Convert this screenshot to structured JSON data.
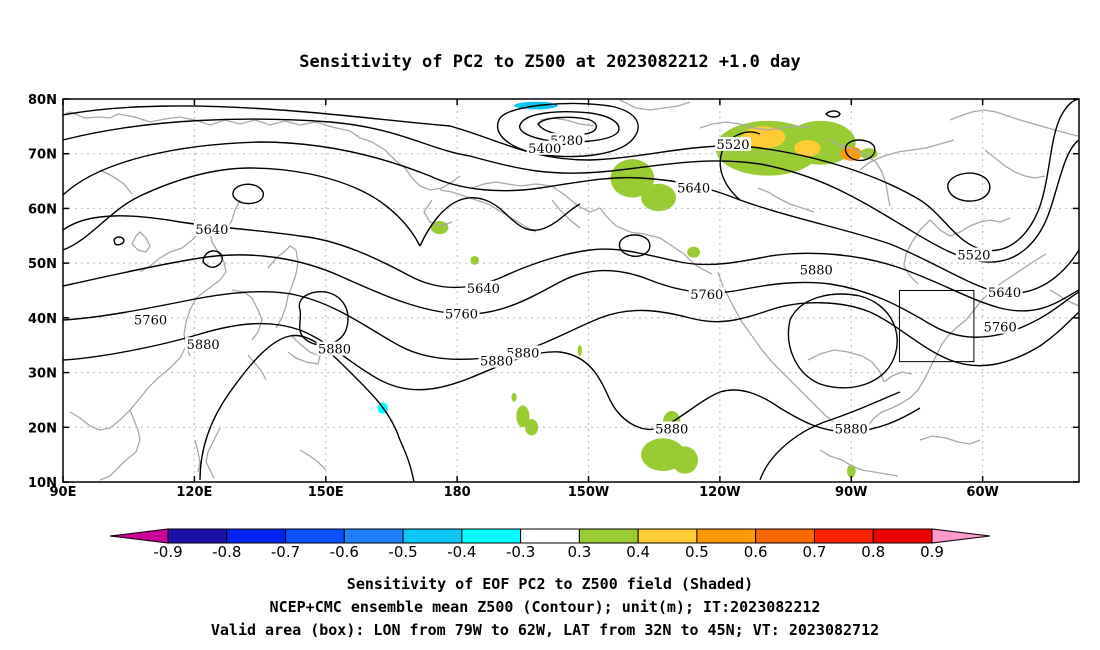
{
  "chart_data": {
    "type": "heatmap",
    "title": "Sensitivity of PC2 to Z500 at 2023082212 +1.0 day",
    "x_ticks": [
      "90E",
      "120E",
      "150E",
      "180",
      "150W",
      "120W",
      "90W",
      "60W"
    ],
    "x_tick_lon": [
      90,
      120,
      150,
      180,
      210,
      240,
      270,
      300
    ],
    "y_ticks": [
      "10N",
      "20N",
      "30N",
      "40N",
      "50N",
      "60N",
      "70N",
      "80N"
    ],
    "y_tick_lat": [
      10,
      20,
      30,
      40,
      50,
      60,
      70,
      80
    ],
    "lon_range": [
      90,
      322
    ],
    "lat_range": [
      10,
      80
    ],
    "grid": true,
    "colorbar": {
      "labels": [
        "-0.9",
        "-0.8",
        "-0.7",
        "-0.6",
        "-0.5",
        "-0.4",
        "-0.3",
        "0.3",
        "0.4",
        "0.5",
        "0.6",
        "0.7",
        "0.8",
        "0.9"
      ],
      "colors": [
        "#cc0099",
        "#1a0fa6",
        "#0023f5",
        "#0a50ff",
        "#1e7fff",
        "#0ac8f5",
        "#00ffff",
        "#ffffff",
        "#99cc33",
        "#ffcc33",
        "#ff9900",
        "#ff6600",
        "#ff2200",
        "#ee0000",
        "#ff99cc"
      ]
    },
    "contour_labels": [
      {
        "text": "5280",
        "lon": 205,
        "lat": 72.3
      },
      {
        "text": "5400",
        "lon": 200,
        "lat": 70.9
      },
      {
        "text": "5520",
        "lon": 243,
        "lat": 71.6
      },
      {
        "text": "5640",
        "lon": 234,
        "lat": 63.6
      },
      {
        "text": "5640",
        "lon": 124,
        "lat": 56.1
      },
      {
        "text": "5640",
        "lon": 186,
        "lat": 45.3
      },
      {
        "text": "5640",
        "lon": 305,
        "lat": 44.5
      },
      {
        "text": "5520",
        "lon": 298,
        "lat": 51.4
      },
      {
        "text": "5760",
        "lon": 110,
        "lat": 39.5
      },
      {
        "text": "5760",
        "lon": 181,
        "lat": 40.6
      },
      {
        "text": "5760",
        "lon": 237,
        "lat": 44.2
      },
      {
        "text": "5760",
        "lon": 304,
        "lat": 38.2
      },
      {
        "text": "5880",
        "lon": 122,
        "lat": 35.0
      },
      {
        "text": "5880",
        "lon": 152,
        "lat": 34.2
      },
      {
        "text": "5880",
        "lon": 195,
        "lat": 33.5
      },
      {
        "text": "5880",
        "lon": 189,
        "lat": 32.0
      },
      {
        "text": "5880",
        "lon": 262,
        "lat": 48.7
      },
      {
        "text": "5880",
        "lon": 229,
        "lat": 19.6
      },
      {
        "text": "5880",
        "lon": 270,
        "lat": 19.6
      }
    ],
    "valid_box": {
      "lon": [
        281,
        298
      ],
      "lat": [
        32,
        45
      ]
    },
    "shading_patches": [
      {
        "lon": 132,
        "lat": 61.5,
        "rx": 1.0,
        "ry": 0.6,
        "val": -0.3
      },
      {
        "lon": 130,
        "lat": 57,
        "rx": 1.2,
        "ry": 0.8,
        "val": -0.3
      },
      {
        "lon": 144,
        "lat": 43,
        "rx": 1.5,
        "ry": 3.5,
        "val": -0.3
      },
      {
        "lon": 150,
        "lat": 38,
        "rx": 4.5,
        "ry": 4,
        "val": -0.3
      },
      {
        "lon": 143,
        "lat": 31,
        "rx": 4.5,
        "ry": 3,
        "val": -0.3
      },
      {
        "lon": 159,
        "lat": 33,
        "rx": 4,
        "ry": 5,
        "val": -0.3
      },
      {
        "lon": 162,
        "lat": 26,
        "rx": 3,
        "ry": 3,
        "val": -0.3
      },
      {
        "lon": 163,
        "lat": 23.5,
        "rx": 1.2,
        "ry": 1,
        "val": -0.4
      },
      {
        "lon": 164,
        "lat": 78.5,
        "rx": 6,
        "ry": 1.6,
        "val": -0.3
      },
      {
        "lon": 173,
        "lat": 77,
        "rx": 5,
        "ry": 2,
        "val": -0.3
      },
      {
        "lon": 201,
        "lat": 79,
        "rx": 11,
        "ry": 1.5,
        "val": -0.3
      },
      {
        "lon": 198,
        "lat": 78.8,
        "rx": 5,
        "ry": 0.7,
        "val": -0.5
      },
      {
        "lon": 281,
        "lat": 60.5,
        "rx": 2.5,
        "ry": 1,
        "val": -0.3
      },
      {
        "lon": 294,
        "lat": 57.5,
        "rx": 2,
        "ry": 1.2,
        "val": -0.3
      },
      {
        "lon": 320,
        "lat": 63.5,
        "rx": 1,
        "ry": 1,
        "val": -0.3
      },
      {
        "lon": 316,
        "lat": 30.5,
        "rx": 1,
        "ry": 0.6,
        "val": -0.3
      },
      {
        "lon": 176,
        "lat": 56.5,
        "rx": 2,
        "ry": 1.2,
        "val": 0.3
      },
      {
        "lon": 184,
        "lat": 50.5,
        "rx": 1,
        "ry": 0.8,
        "val": 0.3
      },
      {
        "lon": 220,
        "lat": 65.5,
        "rx": 5,
        "ry": 3.5,
        "val": 0.3
      },
      {
        "lon": 226,
        "lat": 62,
        "rx": 4,
        "ry": 2.5,
        "val": 0.3
      },
      {
        "lon": 251,
        "lat": 71,
        "rx": 12,
        "ry": 5,
        "val": 0.3
      },
      {
        "lon": 263,
        "lat": 72,
        "rx": 8,
        "ry": 4,
        "val": 0.3
      },
      {
        "lon": 250,
        "lat": 73,
        "rx": 5,
        "ry": 2,
        "val": 0.4
      },
      {
        "lon": 260,
        "lat": 71,
        "rx": 3,
        "ry": 1.5,
        "val": 0.4
      },
      {
        "lon": 270,
        "lat": 70,
        "rx": 2.5,
        "ry": 1.3,
        "val": 0.5
      },
      {
        "lon": 274,
        "lat": 70,
        "rx": 2,
        "ry": 1,
        "val": 0.3
      },
      {
        "lon": 234,
        "lat": 52,
        "rx": 1.5,
        "ry": 1,
        "val": 0.3
      },
      {
        "lon": 195,
        "lat": 22,
        "rx": 1.5,
        "ry": 2,
        "val": 0.3
      },
      {
        "lon": 197,
        "lat": 20,
        "rx": 1.5,
        "ry": 1.5,
        "val": 0.3
      },
      {
        "lon": 193,
        "lat": 25.5,
        "rx": 0.6,
        "ry": 0.8,
        "val": 0.3
      },
      {
        "lon": 227,
        "lat": 15,
        "rx": 5,
        "ry": 3,
        "val": 0.3
      },
      {
        "lon": 229,
        "lat": 21,
        "rx": 2,
        "ry": 2,
        "val": 0.3
      },
      {
        "lon": 232,
        "lat": 14,
        "rx": 3,
        "ry": 2.5,
        "val": 0.3
      },
      {
        "lon": 208,
        "lat": 34,
        "rx": 0.5,
        "ry": 1,
        "val": 0.3
      },
      {
        "lon": 270,
        "lat": 12,
        "rx": 1,
        "ry": 1.2,
        "val": 0.3
      }
    ]
  },
  "footer": {
    "line1": "Sensitivity of EOF PC2 to Z500 field (Shaded)",
    "line2": "NCEP+CMC ensemble mean Z500 (Contour); unit(m); IT:2023082212",
    "line3": "Valid area (box): LON from 79W to 62W, LAT from 32N to 45N; VT: 2023082712"
  }
}
